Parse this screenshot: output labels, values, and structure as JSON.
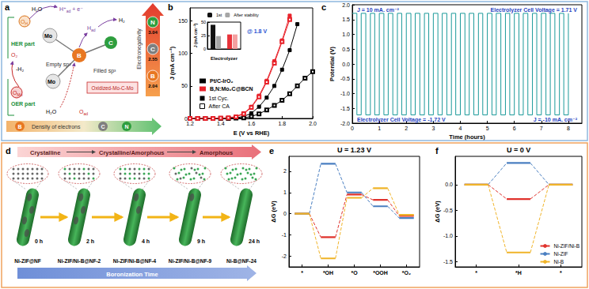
{
  "panel_labels": [
    "a",
    "b",
    "c",
    "d",
    "e",
    "f"
  ],
  "diagram_a": {
    "her_part": "HER part",
    "oer_part": "OER part",
    "species": [
      {
        "text": "H₂O"
      },
      {
        "text": "O",
        "sub": "H"
      },
      {
        "text": "H⁺",
        "sub": "ad",
        "tail": " + e⁻"
      },
      {
        "text": "H",
        "sub": "ad"
      },
      {
        "text": "H₂"
      },
      {
        "text": "Mo"
      },
      {
        "text": "Mo"
      },
      {
        "text": "Empty sp²"
      },
      {
        "text": "Filled sp³"
      },
      {
        "text": "-H₂"
      },
      {
        "text": "O₂"
      },
      {
        "text": "O",
        "sub": "Mo"
      },
      {
        "text": "H₂O"
      },
      {
        "text": "O",
        "sub": "ad"
      }
    ],
    "center_atoms": [
      "B",
      "C"
    ],
    "oxidized": "Oxidized-Mo-C-Mo",
    "electronegativity": {
      "label": "Electronegativity",
      "elements": [
        {
          "symbol": "N",
          "value": 3.04
        },
        {
          "symbol": "C",
          "value": 2.55
        },
        {
          "symbol": "B",
          "value": 2.04
        }
      ]
    },
    "density": {
      "label": "Density of electrons",
      "elements": [
        "B",
        "C",
        "N"
      ]
    }
  },
  "diagram_d": {
    "phases": [
      "Crystalline",
      "Crystalline/Amorphous",
      "Amorphous"
    ],
    "stages": [
      {
        "time": "0 h",
        "sample": "Ni-ZIF@NF"
      },
      {
        "time": "2 h",
        "sample": "Ni-ZIF/Ni-B@NF-2"
      },
      {
        "time": "4 h",
        "sample": "Ni-ZIF/Ni-B@NF-4"
      },
      {
        "time": "9 h",
        "sample": "Ni-ZIF/Ni-B@NF-9"
      },
      {
        "time": "24 h",
        "sample": "Ni-B@NF-24"
      }
    ],
    "axis_label": "Boronization Time"
  },
  "chart_data": [
    {
      "type": "line",
      "xlabel": "E (V vs RHE)",
      "ylabel": "J (mA cm⁻²)",
      "x": [
        1.2,
        1.25,
        1.3,
        1.35,
        1.4,
        1.45,
        1.5,
        1.55,
        1.6,
        1.65,
        1.7,
        1.75,
        1.8,
        1.85,
        1.9,
        1.95,
        2.0
      ],
      "xlim": [
        1.2,
        2.0
      ],
      "xticks": [
        1.2,
        1.4,
        1.6,
        1.8,
        {
          "value": 2.0,
          "label": "2.0"
        }
      ],
      "ylim": [
        0,
        170
      ],
      "yticks": [
        0,
        50,
        100,
        150
      ],
      "grid": false,
      "legend": "bottom-left",
      "series": [
        {
          "name": "Pt/C-IrO₂",
          "color": "#000000",
          "marker": "square",
          "values": [
            0,
            0,
            0,
            0,
            0,
            0.5,
            1,
            3,
            8,
            18,
            32,
            50,
            75,
            105,
            145,
            null,
            null
          ]
        },
        {
          "name": "Pt/C-IrO₂",
          "color": "#000000",
          "marker": "open_square",
          "values": [
            0,
            0,
            0,
            0,
            0,
            0,
            0.5,
            1,
            3,
            7,
            13,
            20,
            28,
            38,
            50,
            62,
            72
          ]
        },
        {
          "name": "B,N:Mo₂C@BCN",
          "color": "#e8222a",
          "marker": "square",
          "values": [
            0,
            0,
            0,
            0,
            0.5,
            1,
            3,
            8,
            18,
            35,
            58,
            88,
            120,
            158,
            null,
            null,
            null
          ]
        },
        {
          "name": "B,N:Mo₂C@BCN",
          "color": "#e8222a",
          "marker": "open_square",
          "values": [
            0,
            0,
            0,
            0,
            0.5,
            1,
            2.5,
            7,
            17,
            33,
            56,
            85,
            118,
            152,
            null,
            null,
            null
          ]
        }
      ],
      "marker_legend": [
        {
          "name": "1st Cyc.",
          "marker": "square"
        },
        {
          "name": "After CA",
          "marker": "open_square"
        }
      ]
    },
    {
      "type": "bar",
      "title": "@ 1.8 V",
      "xlabel": "Electrolyzer",
      "ylabel": "J (mA cm⁻²)",
      "categories": [
        null,
        null
      ],
      "ylim": [
        0,
        50
      ],
      "yticks": [
        0,
        25,
        50
      ],
      "grid": false,
      "legend": "top-left",
      "series": [
        {
          "name": "1st",
          "colors": [
            "#111111",
            "#e8333a"
          ],
          "values": [
            45,
            27
          ]
        },
        {
          "name": "After stability",
          "colors": [
            "#a6a6a6",
            "#f4a0a0"
          ],
          "values": [
            24,
            27
          ]
        }
      ]
    },
    {
      "type": "line",
      "xlabel": "Time (hours)",
      "ylabel": "Potential (V)",
      "x": [
        0,
        0.17,
        0.33,
        0.5,
        0.67,
        0.83,
        1,
        1.17,
        1.33,
        1.5,
        1.67,
        1.83,
        2,
        2.17,
        2.33,
        2.5,
        2.67,
        2.83,
        3,
        3.17,
        3.33,
        3.5,
        3.67,
        3.83,
        4,
        4.17,
        4.33,
        4.5,
        4.67,
        4.83,
        5,
        5.17,
        5.33,
        5.5,
        5.67,
        5.83,
        6,
        6.17,
        6.33,
        6.5,
        6.67,
        6.83,
        7,
        7.17,
        7.33,
        7.5,
        7.67,
        7.83,
        8
      ],
      "xlim": [
        0,
        8.5
      ],
      "xticks": [
        0,
        1,
        2,
        3,
        4,
        5,
        6,
        7,
        8
      ],
      "ylim": [
        -2,
        2
      ],
      "yticks": [
        {
          "value": -2,
          "label": "-2.0"
        },
        -1.5,
        {
          "value": -1,
          "label": "-1.0"
        },
        -0.5,
        {
          "value": 0,
          "label": "0.0"
        },
        0.5,
        {
          "value": 1,
          "label": "1.0"
        },
        1.5,
        {
          "value": 2,
          "label": "2.0"
        }
      ],
      "grid": false,
      "series": [
        {
          "color": "#1b9a9a",
          "line_style": "step",
          "values": [
            1.71,
            -1.72,
            1.71,
            -1.72,
            1.71,
            -1.72,
            1.71,
            -1.72,
            1.71,
            -1.72,
            1.71,
            -1.72,
            1.71,
            -1.72,
            1.71,
            -1.72,
            1.71,
            -1.72,
            1.71,
            -1.72,
            1.71,
            -1.72,
            1.71,
            -1.72,
            1.71,
            -1.72,
            1.71,
            -1.72,
            1.71,
            -1.72,
            1.71,
            -1.72,
            1.71,
            -1.72,
            1.71,
            -1.72,
            1.71,
            -1.72,
            1.71,
            -1.72,
            1.71,
            -1.72,
            1.71,
            -1.72,
            1.71,
            -1.72,
            1.71,
            -1.72,
            1.71
          ]
        }
      ],
      "annotations": [
        "J = 10 mA. cm⁻²",
        "Electrolyzer Cell Voltage = 1.71 V",
        "Electrolyzer Cell Voltage = -1.72 V",
        "J = -10 mA. cm⁻²"
      ]
    },
    {
      "type": "step",
      "title": "U = 1.23 V",
      "ylabel": "ΔG (eV)",
      "categories": [
        "*",
        "*OH",
        "*O",
        "*OOH",
        "*O₂"
      ],
      "ylim": [
        -2.5,
        2.7
      ],
      "yticks": [
        -2,
        -1,
        0,
        1,
        2
      ],
      "grid": false,
      "line_style": "dashed",
      "series": [
        {
          "color": "#e0332d",
          "values": [
            0,
            -1.1,
            0.9,
            0.65,
            -0.1
          ]
        },
        {
          "color": "#4a7fc1",
          "values": [
            0,
            2.35,
            1.0,
            0.35,
            -0.2
          ]
        },
        {
          "color": "#f0b429",
          "values": [
            0,
            -2.1,
            0.75,
            1.2,
            -0.05
          ]
        }
      ]
    },
    {
      "type": "step",
      "title": "U = 0 V",
      "ylabel": "ΔG (eV)",
      "categories": [
        "*",
        "*H",
        "*"
      ],
      "ylim": [
        -1.6,
        0.55
      ],
      "yticks": [
        -1.5,
        {
          "value": -1,
          "label": "-1.0"
        },
        -0.5,
        {
          "value": 0,
          "label": "0.0"
        }
      ],
      "grid": false,
      "line_style": "dashed",
      "legend": "bottom-right",
      "series": [
        {
          "name": "Ni-ZIF/Ni-B",
          "color": "#e0332d",
          "values": [
            0,
            -0.28,
            0
          ]
        },
        {
          "name": "Ni-ZIF",
          "color": "#4a7fc1",
          "values": [
            0,
            0.42,
            0
          ]
        },
        {
          "name": "Ni-B",
          "color": "#f0b429",
          "values": [
            0,
            -1.32,
            0
          ]
        }
      ]
    }
  ]
}
